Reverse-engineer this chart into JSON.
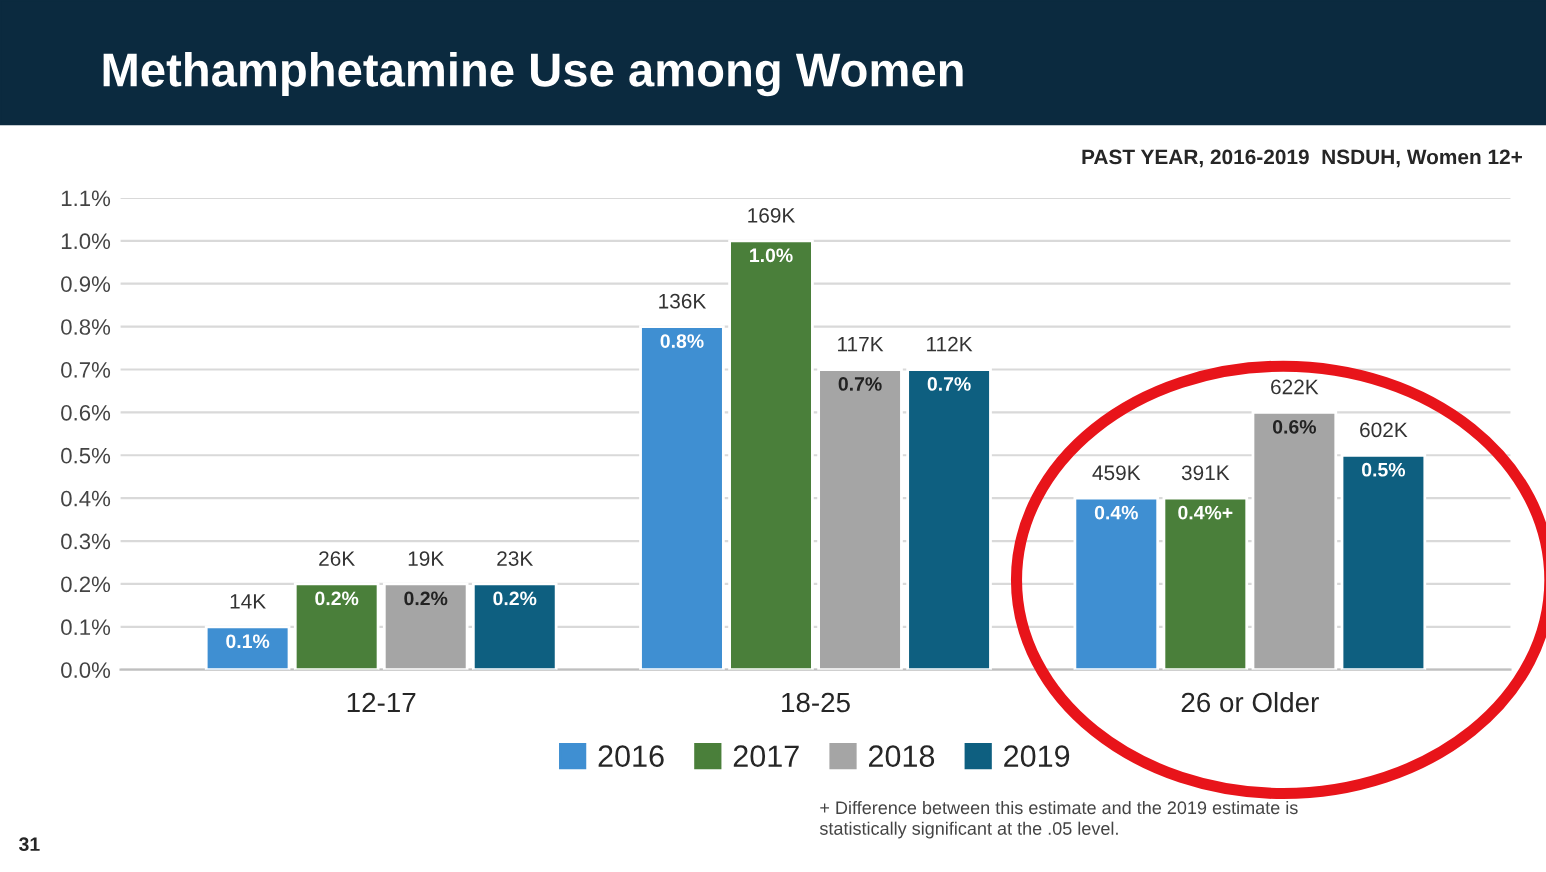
{
  "chart_data": {
    "type": "bar",
    "title": "Methamphetamine Use among Women",
    "subtitle": "PAST YEAR, 2016-2019  NSDUH, Women 12+",
    "categories": [
      "12-17",
      "18-25",
      "26 or Older"
    ],
    "series": [
      {
        "name": "2016",
        "color": "#3f8fd2",
        "values": [
          0.1,
          0.8,
          0.4
        ],
        "value_labels": [
          "0.1%",
          "0.8%",
          "0.4%"
        ]
      },
      {
        "name": "2017",
        "color": "#4a7f3a",
        "values": [
          0.2,
          1.0,
          0.4
        ],
        "value_labels": [
          "0.2%",
          "1.0%",
          "0.4%+"
        ]
      },
      {
        "name": "2018",
        "color": "#a5a5a5",
        "values": [
          0.2,
          0.7,
          0.6
        ],
        "value_labels": [
          "0.2%",
          "0.7%",
          "0.6%"
        ]
      },
      {
        "name": "2019",
        "color": "#0e5f80",
        "values": [
          0.2,
          0.7,
          0.5
        ],
        "value_labels": [
          "0.2%",
          "0.7%",
          "0.5%"
        ]
      }
    ],
    "ylim": [
      0,
      1.1
    ],
    "yticks": [
      {
        "value": 0,
        "label": "0.0%"
      },
      {
        "value": 0.1,
        "label": "0.1%"
      },
      {
        "value": 0.2,
        "label": "0.2%"
      },
      {
        "value": 0.3,
        "label": "0.3%"
      },
      {
        "value": 0.4,
        "label": "0.4%"
      },
      {
        "value": 0.5,
        "label": "0.5%"
      },
      {
        "value": 0.6,
        "label": "0.6%"
      },
      {
        "value": 0.7,
        "label": "0.7%"
      },
      {
        "value": 0.8,
        "label": "0.8%"
      },
      {
        "value": 0.9,
        "label": "0.9%"
      },
      {
        "value": 1.0,
        "label": "1.0%"
      },
      {
        "value": 1.1,
        "label": "1.1%"
      }
    ],
    "grid": "y",
    "legend": "bottom",
    "annotations": [
      "14K",
      "26K",
      "19K",
      "23K",
      "136K",
      "169K",
      "117K",
      "112K",
      "459K",
      "391K",
      "622K",
      "602K",
      "+ Difference between this estimate and the 2019 estimate is\nstatistically significant at the .05 level.",
      "31"
    ]
  }
}
